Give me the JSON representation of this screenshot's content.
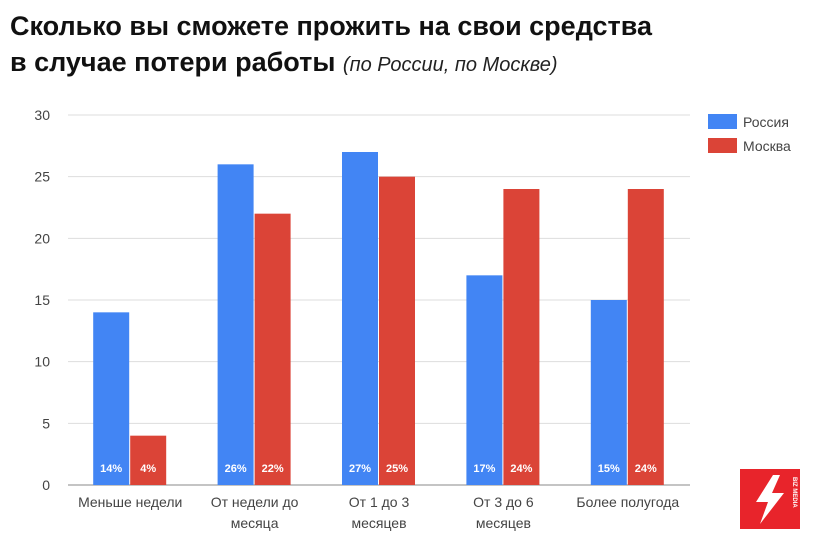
{
  "title_line1": "Сколько вы сможете прожить на свои средства",
  "title_line2": "в случае потери работы",
  "title_note": "(по России, по Москве)",
  "logo_text": "BIZ MEDIA",
  "colors": {
    "russia": "#4285f4",
    "moscow": "#db4437",
    "grid": "#dddddd",
    "axis": "#888888",
    "text": "#444444"
  },
  "chart_data": {
    "type": "bar",
    "categories": [
      [
        "Меньше недели"
      ],
      [
        "От недели до",
        "месяца"
      ],
      [
        "От 1 до 3",
        "месяцев"
      ],
      [
        "От 3 до 6",
        "месяцев"
      ],
      [
        "Более полугода"
      ]
    ],
    "series": [
      {
        "name": "Россия",
        "values": [
          14,
          26,
          27,
          17,
          15
        ],
        "labels": [
          "14%",
          "26%",
          "27%",
          "17%",
          "15%"
        ],
        "color": "#4285f4"
      },
      {
        "name": "Москва",
        "values": [
          4,
          22,
          25,
          24,
          24
        ],
        "labels": [
          "4%",
          "22%",
          "25%",
          "24%",
          "24%"
        ],
        "color": "#db4437"
      }
    ],
    "ylim": [
      0,
      30
    ],
    "yticks": [
      "0",
      "5",
      "10",
      "15",
      "20",
      "25",
      "30"
    ],
    "grid": true,
    "legend": "right"
  }
}
